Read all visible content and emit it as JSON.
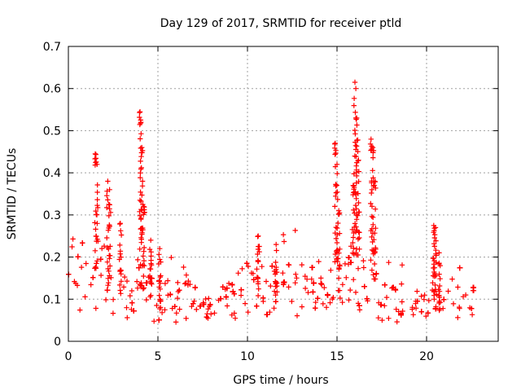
{
  "chart_data": {
    "type": "scatter",
    "title": "Day 129 of 2017, SRMTID for receiver ptld",
    "xlabel": "GPS time / hours",
    "ylabel": "SRMTID / TECUs",
    "xlim": [
      0,
      24
    ],
    "ylim": [
      0,
      0.7
    ],
    "xticks": [
      0,
      5,
      10,
      15,
      20
    ],
    "yticks": [
      0,
      0.1,
      0.2,
      0.3,
      0.4,
      0.5,
      0.6,
      0.7
    ],
    "xtick_labels": [
      "0",
      "5",
      "10",
      "15",
      "20"
    ],
    "ytick_labels": [
      "0",
      "0.1",
      "0.2",
      "0.3",
      "0.4",
      "0.5",
      "0.6",
      "0.7"
    ],
    "grid": true,
    "marker": "+",
    "series": [
      {
        "name": "SRMTID",
        "color": "#ff0000",
        "background_level": [
          [
            0.0,
            0.15
          ],
          [
            0.3,
            0.16
          ],
          [
            0.6,
            0.12
          ],
          [
            1.0,
            0.14
          ],
          [
            1.4,
            0.13
          ],
          [
            1.7,
            0.15
          ],
          [
            2.0,
            0.15
          ],
          [
            2.5,
            0.11
          ],
          [
            3.0,
            0.1
          ],
          [
            3.5,
            0.09
          ],
          [
            4.0,
            0.12
          ],
          [
            4.5,
            0.1
          ],
          [
            5.0,
            0.09
          ],
          [
            5.5,
            0.1
          ],
          [
            6.0,
            0.09
          ],
          [
            6.5,
            0.1
          ],
          [
            7.0,
            0.09
          ],
          [
            7.5,
            0.08
          ],
          [
            8.0,
            0.07
          ],
          [
            8.5,
            0.08
          ],
          [
            9.0,
            0.09
          ],
          [
            9.5,
            0.11
          ],
          [
            10.0,
            0.12
          ],
          [
            10.5,
            0.13
          ],
          [
            11.0,
            0.12
          ],
          [
            11.5,
            0.11
          ],
          [
            12.0,
            0.11
          ],
          [
            12.5,
            0.12
          ],
          [
            13.0,
            0.12
          ],
          [
            13.5,
            0.11
          ],
          [
            14.0,
            0.12
          ],
          [
            14.5,
            0.13
          ],
          [
            15.0,
            0.14
          ],
          [
            15.5,
            0.13
          ],
          [
            16.0,
            0.13
          ],
          [
            16.5,
            0.12
          ],
          [
            17.0,
            0.11
          ],
          [
            17.5,
            0.09
          ],
          [
            18.0,
            0.08
          ],
          [
            18.5,
            0.08
          ],
          [
            19.0,
            0.08
          ],
          [
            19.5,
            0.08
          ],
          [
            20.0,
            0.07
          ],
          [
            20.5,
            0.1
          ],
          [
            21.0,
            0.08
          ],
          [
            21.5,
            0.08
          ],
          [
            22.0,
            0.08
          ],
          [
            22.7,
            0.09
          ]
        ],
        "spikes": [
          [
            1.5,
            0.445
          ],
          [
            1.6,
            0.42
          ],
          [
            2.2,
            0.38
          ],
          [
            2.3,
            0.36
          ],
          [
            2.9,
            0.28
          ],
          [
            4.0,
            0.545
          ],
          [
            4.05,
            0.52
          ],
          [
            4.1,
            0.46
          ],
          [
            4.2,
            0.32
          ],
          [
            4.6,
            0.24
          ],
          [
            5.1,
            0.22
          ],
          [
            10.6,
            0.25
          ],
          [
            11.6,
            0.23
          ],
          [
            14.9,
            0.47
          ],
          [
            15.0,
            0.42
          ],
          [
            15.1,
            0.31
          ],
          [
            15.9,
            0.37
          ],
          [
            16.0,
            0.615
          ],
          [
            16.05,
            0.6
          ],
          [
            16.1,
            0.53
          ],
          [
            16.2,
            0.43
          ],
          [
            16.9,
            0.48
          ],
          [
            17.0,
            0.46
          ],
          [
            17.1,
            0.38
          ],
          [
            20.4,
            0.275
          ],
          [
            20.5,
            0.27
          ],
          [
            20.7,
            0.21
          ]
        ]
      }
    ]
  }
}
